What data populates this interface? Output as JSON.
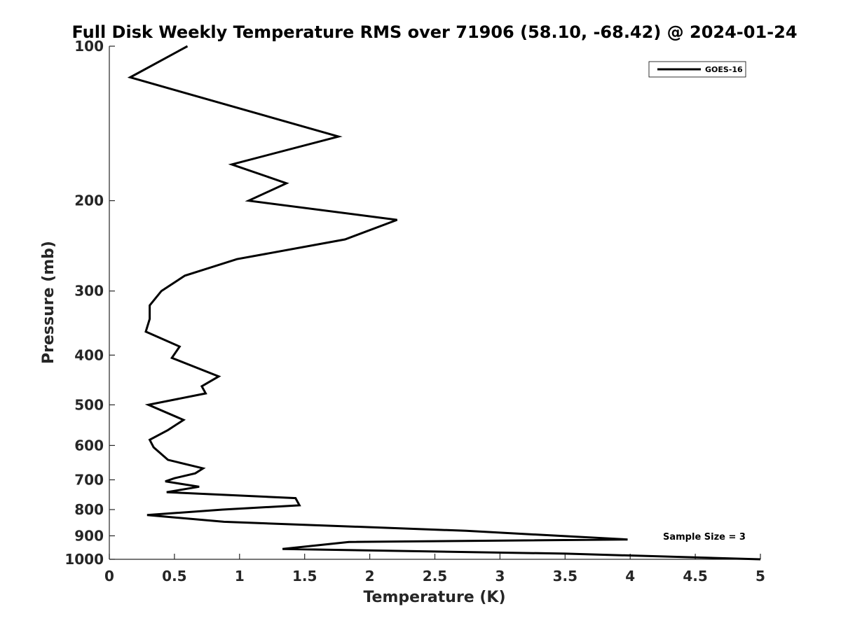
{
  "chart_data": {
    "type": "line",
    "title": "Full Disk Weekly Temperature RMS over 71906 (58.10, -68.42) @ 2024-01-24",
    "xlabel": "Temperature (K)",
    "ylabel": "Pressure (mb)",
    "xlim": [
      0,
      5
    ],
    "ylim": [
      100,
      1000
    ],
    "y_scale": "log",
    "y_reversed": true,
    "x_ticks": [
      "0",
      "0.5",
      "1",
      "1.5",
      "2",
      "2.5",
      "3",
      "3.5",
      "4",
      "4.5",
      "5"
    ],
    "y_ticks": [
      "100",
      "200",
      "300",
      "400",
      "500",
      "600",
      "700",
      "800",
      "900",
      "1000"
    ],
    "grid": false,
    "legend": {
      "position": "top-right",
      "entries": [
        "GOES-16"
      ]
    },
    "annotation": "Sample Size = 3",
    "series": [
      {
        "name": "GOES-16",
        "color": "#000000",
        "points": [
          [
            0.6,
            100
          ],
          [
            0.16,
            115
          ],
          [
            1.76,
            150
          ],
          [
            0.94,
            170
          ],
          [
            1.36,
            185
          ],
          [
            1.07,
            200
          ],
          [
            2.21,
            218
          ],
          [
            1.81,
            238
          ],
          [
            0.98,
            260
          ],
          [
            0.58,
            280
          ],
          [
            0.4,
            300
          ],
          [
            0.31,
            320
          ],
          [
            0.31,
            340
          ],
          [
            0.28,
            360
          ],
          [
            0.54,
            385
          ],
          [
            0.48,
            405
          ],
          [
            0.84,
            440
          ],
          [
            0.71,
            460
          ],
          [
            0.74,
            475
          ],
          [
            0.3,
            500
          ],
          [
            0.57,
            535
          ],
          [
            0.45,
            560
          ],
          [
            0.31,
            585
          ],
          [
            0.34,
            605
          ],
          [
            0.45,
            640
          ],
          [
            0.72,
            665
          ],
          [
            0.66,
            680
          ],
          [
            0.5,
            695
          ],
          [
            0.43,
            705
          ],
          [
            0.69,
            722
          ],
          [
            0.44,
            740
          ],
          [
            1.43,
            760
          ],
          [
            1.46,
            785
          ],
          [
            0.87,
            800
          ],
          [
            0.29,
            820
          ],
          [
            0.88,
            845
          ],
          [
            2.74,
            880
          ],
          [
            3.98,
            915
          ],
          [
            1.84,
            925
          ],
          [
            1.33,
            955
          ],
          [
            3.5,
            975
          ],
          [
            5.0,
            1000
          ]
        ]
      }
    ]
  }
}
